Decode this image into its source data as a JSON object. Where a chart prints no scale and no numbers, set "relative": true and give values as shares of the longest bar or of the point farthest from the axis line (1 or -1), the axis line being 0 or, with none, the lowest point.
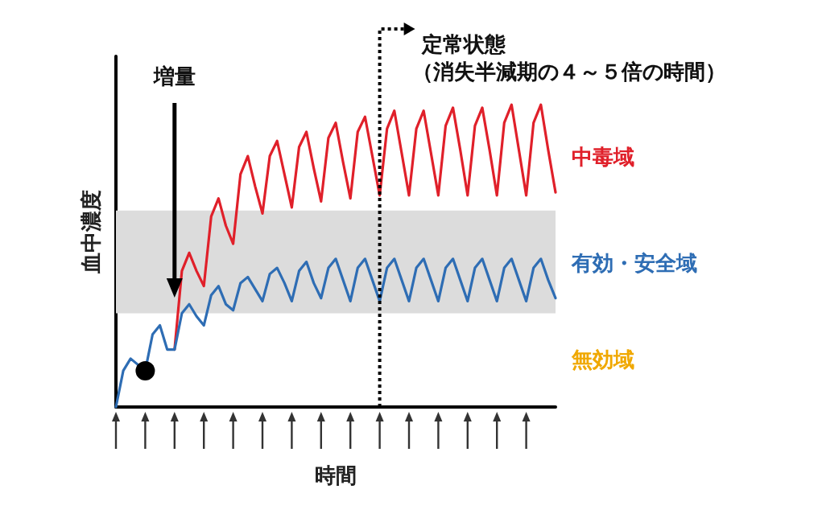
{
  "chart_data": {
    "type": "line",
    "relative": true,
    "xlabel": "時間",
    "ylabel": "血中濃度",
    "tick_labels": false,
    "categories": [
      null,
      null,
      null,
      null,
      null,
      null,
      null,
      null,
      null,
      null,
      null,
      null,
      null,
      null,
      null,
      null,
      null,
      null,
      null,
      null,
      null,
      null,
      null,
      null,
      null,
      null,
      null,
      null,
      null,
      null,
      null,
      null,
      null,
      null,
      null,
      null,
      null,
      null,
      null,
      null,
      null,
      null,
      null,
      null,
      null,
      null,
      null,
      null,
      null,
      null,
      null,
      null,
      null,
      null,
      null,
      null,
      null,
      null,
      null,
      null,
      null
    ],
    "series": [
      {
        "color": "#e0202a",
        "values": [
          null,
          null,
          null,
          null,
          null,
          null,
          null,
          null,
          0.19,
          0.45,
          0.51,
          0.45,
          0.4,
          0.63,
          0.69,
          0.6,
          0.54,
          0.77,
          0.83,
          0.73,
          0.64,
          0.83,
          0.88,
          0.77,
          0.66,
          0.86,
          0.91,
          0.79,
          0.68,
          0.89,
          0.94,
          0.81,
          0.69,
          0.91,
          0.96,
          0.83,
          0.7,
          0.92,
          0.98,
          0.84,
          0.7,
          0.92,
          0.98,
          0.84,
          0.7,
          0.93,
          0.99,
          0.85,
          0.7,
          0.93,
          0.99,
          0.85,
          0.7,
          0.94,
          1,
          0.85,
          0.7,
          0.94,
          1,
          0.85,
          0.71
        ]
      },
      {
        "color": "#2e6db4",
        "values": [
          0,
          0.12,
          0.16,
          0.14,
          0.12,
          0.24,
          0.27,
          0.19,
          0.19,
          0.31,
          0.34,
          0.3,
          0.27,
          0.37,
          0.4,
          0.34,
          0.32,
          0.41,
          0.43,
          0.39,
          0.35,
          0.44,
          0.46,
          0.41,
          0.35,
          0.45,
          0.48,
          0.41,
          0.36,
          0.46,
          0.49,
          0.42,
          0.35,
          0.46,
          0.49,
          0.42,
          0.35,
          0.46,
          0.49,
          0.42,
          0.35,
          0.46,
          0.49,
          0.42,
          0.35,
          0.46,
          0.49,
          0.42,
          0.35,
          0.46,
          0.49,
          0.42,
          0.35,
          0.46,
          0.49,
          0.42,
          0.35,
          0.46,
          0.49,
          0.42,
          0.36
        ]
      }
    ],
    "bands": [
      {
        "axis": "y",
        "from": 0.31,
        "to": 0.65,
        "label": "有効・安全域",
        "color": "#dcdcdc"
      }
    ],
    "annotations": [
      "増量",
      "定常状態",
      "（消失半減期の４～５倍の時間）",
      "中毒域",
      "無効域"
    ]
  }
}
